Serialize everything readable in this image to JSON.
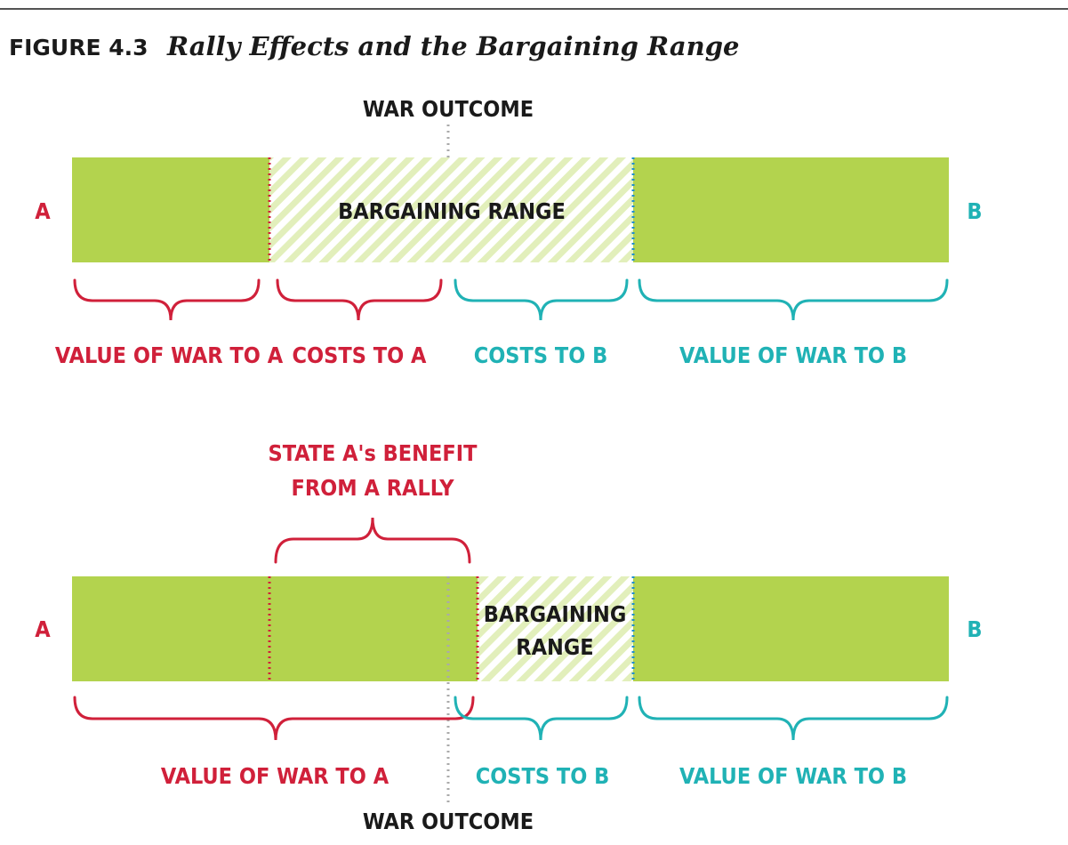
{
  "figure": {
    "number": "FIGURE 4.3",
    "title": "Rally Effects and the Bargaining Range"
  },
  "colors": {
    "green": "#b3d34e",
    "hatch_light": "#e2efbb",
    "red": "#d0203a",
    "teal": "#20b2b5",
    "blue_dot": "#1f8fd0",
    "gray_dot": "#aaaaaa",
    "text_dark": "#1a1a1a"
  },
  "panel_top": {
    "war_outcome_label": "WAR OUTCOME",
    "bargaining_range_label": "BARGAINING RANGE",
    "endpoint_a": "A",
    "endpoint_b": "B",
    "brace_labels": {
      "value_of_war_to_a": "VALUE OF WAR TO A",
      "costs_to_a": "COSTS TO A",
      "costs_to_b": "COSTS TO B",
      "value_of_war_to_b": "VALUE OF WAR TO B"
    }
  },
  "panel_bottom": {
    "rally_benefit_label_line1": "STATE A's BENEFIT",
    "rally_benefit_label_line2": "FROM A RALLY",
    "bargaining_range_line1": "BARGAINING",
    "bargaining_range_line2": "RANGE",
    "war_outcome_label": "WAR OUTCOME",
    "endpoint_a": "A",
    "endpoint_b": "B",
    "brace_labels": {
      "value_of_war_to_a": "VALUE OF WAR TO A",
      "costs_to_b": "COSTS TO B",
      "value_of_war_to_b": "VALUE OF WAR TO B"
    }
  }
}
